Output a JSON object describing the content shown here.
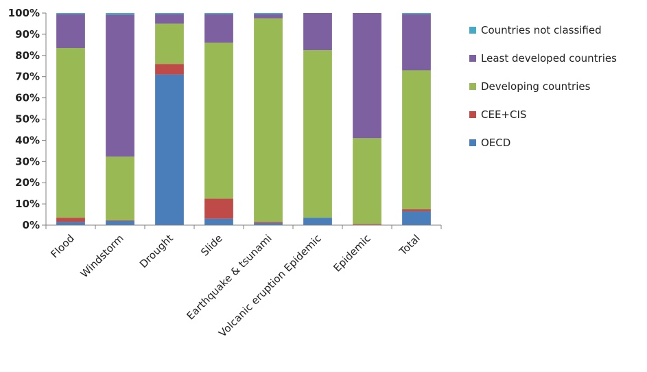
{
  "chart_data": {
    "type": "bar",
    "stacked": true,
    "normalized": true,
    "categories": [
      "Flood",
      "Windstorm",
      "Drought",
      "Slide",
      "Earthquake & tsunami",
      "Volcanic eruption Epidemic",
      "Epidemic",
      "Total"
    ],
    "ylim": [
      0,
      100
    ],
    "yticks": [
      "0%",
      "10%",
      "20%",
      "30%",
      "40%",
      "50%",
      "60%",
      "70%",
      "80%",
      "90%",
      "100%"
    ],
    "grid": false,
    "legend_position": "right",
    "series": [
      {
        "name": "OECD",
        "color": "#4a7ebb",
        "values": [
          1.5,
          2,
          71,
          3,
          1,
          3.5,
          0.2,
          6.5
        ]
      },
      {
        "name": "CEE+CIS",
        "color": "#be4b48",
        "values": [
          2,
          0.3,
          5,
          9.5,
          0.5,
          0,
          0.3,
          1
        ]
      },
      {
        "name": "Developing countries",
        "color": "#98b954",
        "values": [
          80,
          30,
          19,
          73.5,
          96,
          79,
          40.5,
          65.5
        ]
      },
      {
        "name": "Least developed countries",
        "color": "#7d60a0",
        "values": [
          16,
          67,
          4.5,
          13.5,
          2,
          17.5,
          59,
          26.5
        ]
      },
      {
        "name": "Countries not classified",
        "color": "#46aac5",
        "values": [
          0.5,
          0.7,
          0.5,
          0.5,
          0.5,
          0,
          0,
          0.5
        ]
      }
    ]
  }
}
